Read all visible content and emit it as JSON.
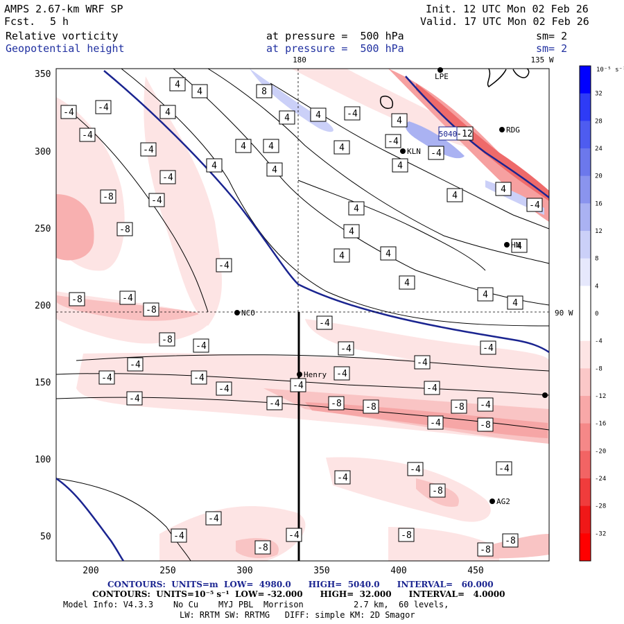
{
  "header": {
    "model": "AMPS 2.67-km WRF SP",
    "forecast_label": "Fcst.",
    "forecast_value": "5 h",
    "init": "Init. 12 UTC Mon 02 Feb 26",
    "valid": "Valid. 17 UTC Mon 02 Feb 26",
    "field1": "Relative vorticity",
    "field2": "Geopotential height",
    "pressure1": "at pressure =  500 hPa",
    "pressure2": "at pressure =  500 hPa",
    "sm1": "sm= 2",
    "sm2": "sm= 2"
  },
  "map": {
    "lon_180": "180",
    "lon_135w": "135 W",
    "lon_90w": "90 W",
    "x_ticks": [
      "200",
      "250",
      "300",
      "350",
      "400",
      "450"
    ],
    "y_ticks": [
      "350",
      "300",
      "250",
      "200",
      "150",
      "100",
      "50"
    ],
    "stations": [
      "NCO",
      "Henry",
      "KLN",
      "RDG",
      "HN",
      "AG2",
      "LPE"
    ],
    "height_label": "5040",
    "contour_labels": [
      "-4",
      "-8",
      "4",
      "8",
      "-12"
    ],
    "colors": {
      "negative": "#f07a7a",
      "positive": "#7a80e8",
      "height_line": "#1a2490"
    }
  },
  "colorbar": {
    "units": "10⁻⁵ s⁻¹",
    "ticks": [
      "32",
      "28",
      "24",
      "20",
      "16",
      "12",
      "8",
      "4",
      "0",
      "-4",
      "-8",
      "-12",
      "-16",
      "-20",
      "-24",
      "-28",
      "-32"
    ],
    "colors": [
      "#0000ff",
      "#2e3bf6",
      "#4e5cf0",
      "#6c78ec",
      "#8a94ee",
      "#aab2f2",
      "#cbd0f8",
      "#e6e8fc",
      "#ffffff",
      "#ffffff",
      "#fde4e4",
      "#fbc8c8",
      "#f8a8a8",
      "#f58888",
      "#f26464",
      "#f03c3c",
      "#f01818",
      "#ff0000"
    ]
  },
  "footer": {
    "line1": "CONTOURS:  UNITS=m  LOW=  4980.0      HIGH=  5040.0      INTERVAL=   60.000",
    "line2": "CONTOURS:  UNITS=10⁻⁵ s⁻¹  LOW= -32.000      HIGH=  32.000      INTERVAL=   4.0000",
    "line3": "Model Info: V4.3.3    No Cu    MYJ PBL  Morrison          2.7 km,  60 levels,",
    "line4": "LW: RRTM SW: RRTMG   DIFF: simple KM: 2D Smagor"
  }
}
